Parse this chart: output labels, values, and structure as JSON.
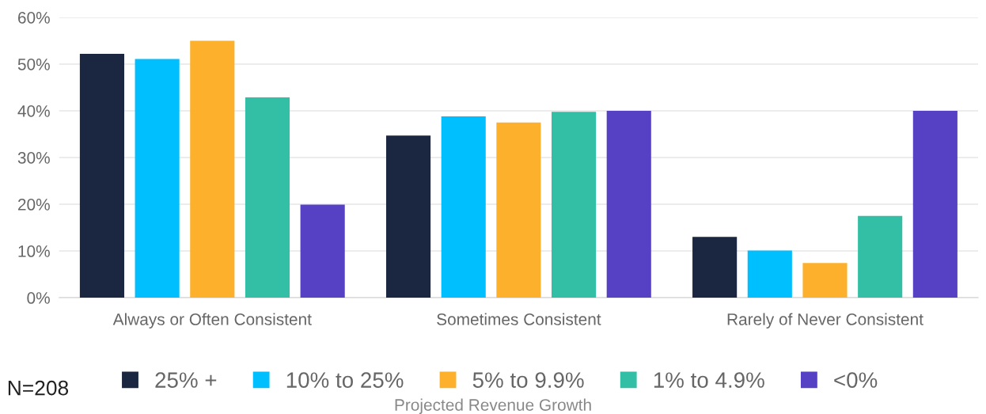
{
  "chart_data": {
    "type": "bar",
    "categories": [
      "Always or Often Consistent",
      "Sometimes Consistent",
      "Rarely of Never Consistent"
    ],
    "series": [
      {
        "name": "25% +",
        "color": "#1b2640",
        "values": [
          52.2,
          34.7,
          13.0
        ]
      },
      {
        "name": "10% to 25%",
        "color": "#00bfff",
        "values": [
          51.1,
          38.8,
          10.1
        ]
      },
      {
        "name": "5% to 9.9%",
        "color": "#fdb02b",
        "values": [
          55.0,
          37.5,
          7.4
        ]
      },
      {
        "name": "1% to 4.9%",
        "color": "#33bfa5",
        "values": [
          42.9,
          39.8,
          17.5
        ]
      },
      {
        "name": "<0%",
        "color": "#5640c4",
        "values": [
          19.9,
          40.0,
          40.0
        ]
      }
    ],
    "ylim": [
      0,
      60
    ],
    "yticks": [
      {
        "value": 0,
        "label": "0%"
      },
      {
        "value": 10,
        "label": "10%"
      },
      {
        "value": 20,
        "label": "20%"
      },
      {
        "value": 30,
        "label": "30%"
      },
      {
        "value": 40,
        "label": "40%"
      },
      {
        "value": 50,
        "label": "50%"
      },
      {
        "value": 60,
        "label": "60%"
      }
    ],
    "grid": "y",
    "legend": "bottom",
    "legend_title": "Projected Revenue Growth",
    "annotations": [
      "N=208"
    ]
  }
}
